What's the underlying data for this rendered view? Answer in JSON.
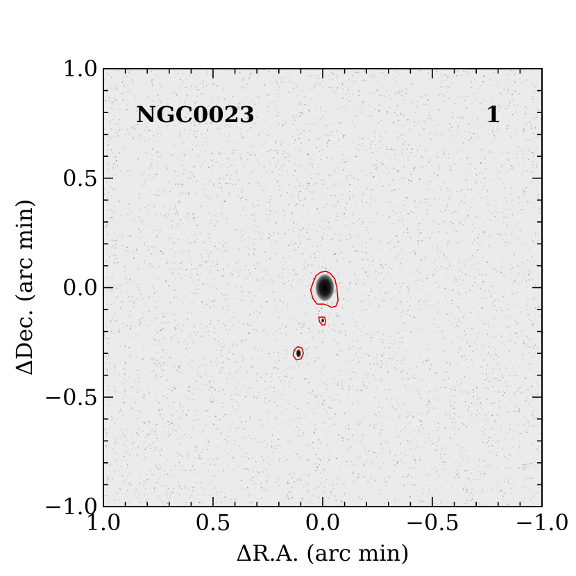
{
  "chart_data": {
    "type": "heatmap",
    "title": "",
    "object_label": "NGC0023",
    "panel_number": "1",
    "xlabel": "ΔR.A. (arc min)",
    "ylabel": "ΔDec. (arc min)",
    "xlim": [
      1.0,
      -1.0
    ],
    "ylim": [
      -1.0,
      1.0
    ],
    "x_ticks": [
      {
        "value": 1.0,
        "label": "1.0"
      },
      {
        "value": 0.5,
        "label": "0.5"
      },
      {
        "value": 0.0,
        "label": "0.0"
      },
      {
        "value": -0.5,
        "label": "−0.5"
      },
      {
        "value": -1.0,
        "label": "−1.0"
      }
    ],
    "y_ticks": [
      {
        "value": 1.0,
        "label": "1.0"
      },
      {
        "value": 0.5,
        "label": "0.5"
      },
      {
        "value": 0.0,
        "label": "0.0"
      },
      {
        "value": -0.5,
        "label": "−0.5"
      },
      {
        "value": -1.0,
        "label": "−1.0"
      }
    ],
    "minor_tick_step": 0.1,
    "colormap": "grayscale (noise background, dark source)",
    "contour_color": "#e00000",
    "sources": [
      {
        "name": "main",
        "x": -0.01,
        "y": 0.0,
        "rx": 0.045,
        "ry": 0.065
      },
      {
        "name": "knot-1",
        "x": 0.0,
        "y": -0.15,
        "rx": 0.007,
        "ry": 0.01
      },
      {
        "name": "knot-2",
        "x": 0.11,
        "y": -0.3,
        "rx": 0.012,
        "ry": 0.02
      }
    ],
    "contours": [
      {
        "name": "contour-main",
        "points": [
          [
            0.045,
            0.02
          ],
          [
            0.03,
            0.055
          ],
          [
            0.01,
            0.07
          ],
          [
            -0.015,
            0.075
          ],
          [
            -0.035,
            0.065
          ],
          [
            -0.055,
            0.04
          ],
          [
            -0.065,
            0.0
          ],
          [
            -0.07,
            -0.06
          ],
          [
            -0.06,
            -0.085
          ],
          [
            -0.04,
            -0.09
          ],
          [
            -0.02,
            -0.08
          ],
          [
            -0.005,
            -0.075
          ],
          [
            0.025,
            -0.075
          ],
          [
            0.045,
            -0.05
          ],
          [
            0.055,
            -0.01
          ]
        ]
      },
      {
        "name": "contour-knot-1",
        "points": [
          [
            0.018,
            -0.135
          ],
          [
            -0.008,
            -0.135
          ],
          [
            -0.013,
            -0.15
          ],
          [
            -0.01,
            -0.17
          ],
          [
            0.003,
            -0.17
          ],
          [
            0.015,
            -0.155
          ]
        ]
      },
      {
        "name": "contour-knot-2",
        "points": [
          [
            0.13,
            -0.285
          ],
          [
            0.115,
            -0.27
          ],
          [
            0.095,
            -0.275
          ],
          [
            0.088,
            -0.3
          ],
          [
            0.098,
            -0.325
          ],
          [
            0.12,
            -0.33
          ],
          [
            0.135,
            -0.31
          ]
        ]
      }
    ]
  }
}
